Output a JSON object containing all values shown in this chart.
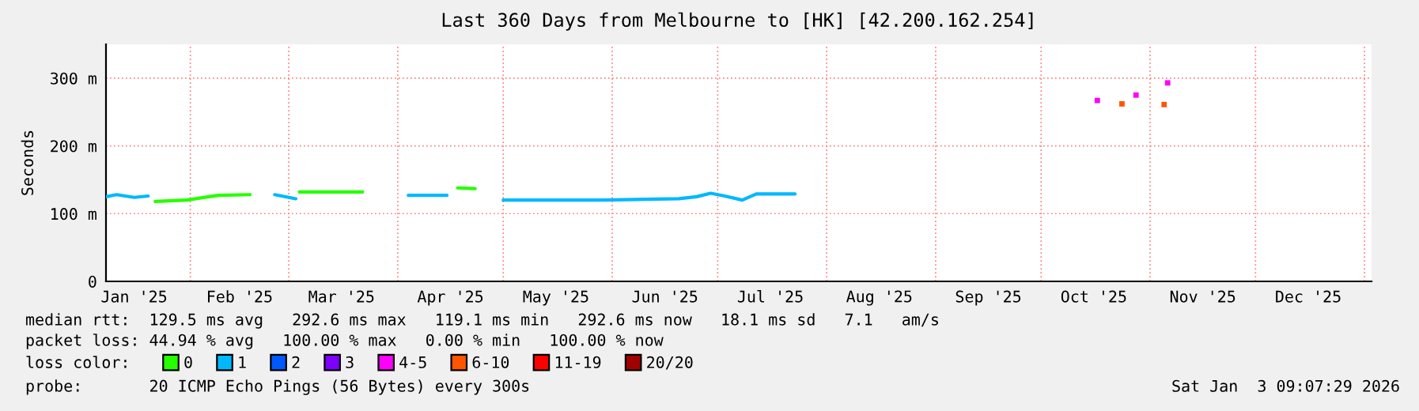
{
  "chart_data": {
    "type": "line",
    "title": "Last 360 Days from Melbourne to [HK] [42.200.162.254]",
    "ylabel": "Seconds",
    "legend_title": "loss color:",
    "legend": "bottom",
    "grid": true,
    "xlim": [
      "2025-01-08",
      "2026-01-03"
    ],
    "xticks": [
      {
        "value": "2025-01-16",
        "label": "Jan '25"
      },
      {
        "value": "2025-02-01",
        "label": null
      },
      {
        "value": "2025-02-15",
        "label": "Feb '25"
      },
      {
        "value": "2025-03-01",
        "label": null
      },
      {
        "value": "2025-03-16",
        "label": "Mar '25"
      },
      {
        "value": "2025-04-01",
        "label": null
      },
      {
        "value": "2025-04-16",
        "label": "Apr '25"
      },
      {
        "value": "2025-05-01",
        "label": null
      },
      {
        "value": "2025-05-16",
        "label": "May '25"
      },
      {
        "value": "2025-06-01",
        "label": null
      },
      {
        "value": "2025-06-16",
        "label": "Jun '25"
      },
      {
        "value": "2025-07-01",
        "label": null
      },
      {
        "value": "2025-07-16",
        "label": "Jul '25"
      },
      {
        "value": "2025-08-01",
        "label": null
      },
      {
        "value": "2025-08-16",
        "label": "Aug '25"
      },
      {
        "value": "2025-09-01",
        "label": null
      },
      {
        "value": "2025-09-16",
        "label": "Sep '25"
      },
      {
        "value": "2025-10-01",
        "label": null
      },
      {
        "value": "2025-10-16",
        "label": "Oct '25"
      },
      {
        "value": "2025-11-01",
        "label": null
      },
      {
        "value": "2025-11-16",
        "label": "Nov '25"
      },
      {
        "value": "2025-12-01",
        "label": null
      },
      {
        "value": "2025-12-16",
        "label": "Dec '25"
      },
      {
        "value": "2026-01-01",
        "label": null
      }
    ],
    "ylim": [
      0,
      350
    ],
    "yticks": [
      {
        "value": 0,
        "label": "0"
      },
      {
        "value": 100,
        "label": "100 m"
      },
      {
        "value": 200,
        "label": "200 m"
      },
      {
        "value": 300,
        "label": "300 m"
      }
    ],
    "series": [
      {
        "name": "0",
        "color": "#26ff00",
        "x": [
          "2025-01-22",
          "2025-01-31",
          "2025-02-09",
          "2025-02-18",
          "2025-02-25",
          "2025-03-04",
          "2025-03-22",
          "2025-04-01",
          "2025-04-18",
          "2025-04-23"
        ],
        "values": [
          118,
          120,
          127,
          128,
          null,
          132,
          132,
          null,
          138,
          137
        ]
      },
      {
        "name": "1",
        "color": "#00b8ff",
        "x": [
          "2025-01-08",
          "2025-01-11",
          "2025-01-16",
          "2025-01-20",
          "2025-01-21",
          "2025-02-25",
          "2025-03-03",
          "2025-03-04",
          "2025-04-04",
          "2025-04-15",
          "2025-04-17",
          "2025-05-01",
          "2025-05-15",
          "2025-05-28",
          "2025-06-20",
          "2025-06-25",
          "2025-06-29",
          "2025-07-03",
          "2025-07-08",
          "2025-07-12",
          "2025-07-23"
        ],
        "values": [
          125,
          128,
          124,
          126,
          null,
          128,
          122,
          null,
          127,
          127,
          null,
          120,
          120,
          120,
          122,
          125,
          130,
          126,
          120,
          129,
          129
        ]
      },
      {
        "name": "2",
        "color": "#0059ff"
      },
      {
        "name": "3",
        "color": "#7e00ff"
      },
      {
        "name": "4-5",
        "color": "#ff00ff",
        "type": "scatter",
        "marker": "square",
        "x": [
          "2025-10-17",
          "2025-10-28",
          "2025-11-06"
        ],
        "values": [
          267,
          275,
          293
        ]
      },
      {
        "name": "6-10",
        "color": "#ff5500",
        "type": "scatter",
        "marker": "square",
        "x": [
          "2025-10-24",
          "2025-11-05"
        ],
        "values": [
          262,
          261
        ]
      },
      {
        "name": "11-19",
        "color": "#ff0000"
      },
      {
        "name": "20/20",
        "color": "#a10000"
      }
    ],
    "annotations": [
      "median rtt:  129.5 ms avg   292.6 ms max   119.1 ms min   292.6 ms now   18.1 ms sd   7.1   am/s",
      "packet loss: 44.94 % avg   100.00 % max   0.00 % min   100.00 % now",
      "probe:       20 ICMP Echo Pings (56 Bytes) every 300s",
      "Sat Jan  3 09:07:29 2026"
    ]
  }
}
